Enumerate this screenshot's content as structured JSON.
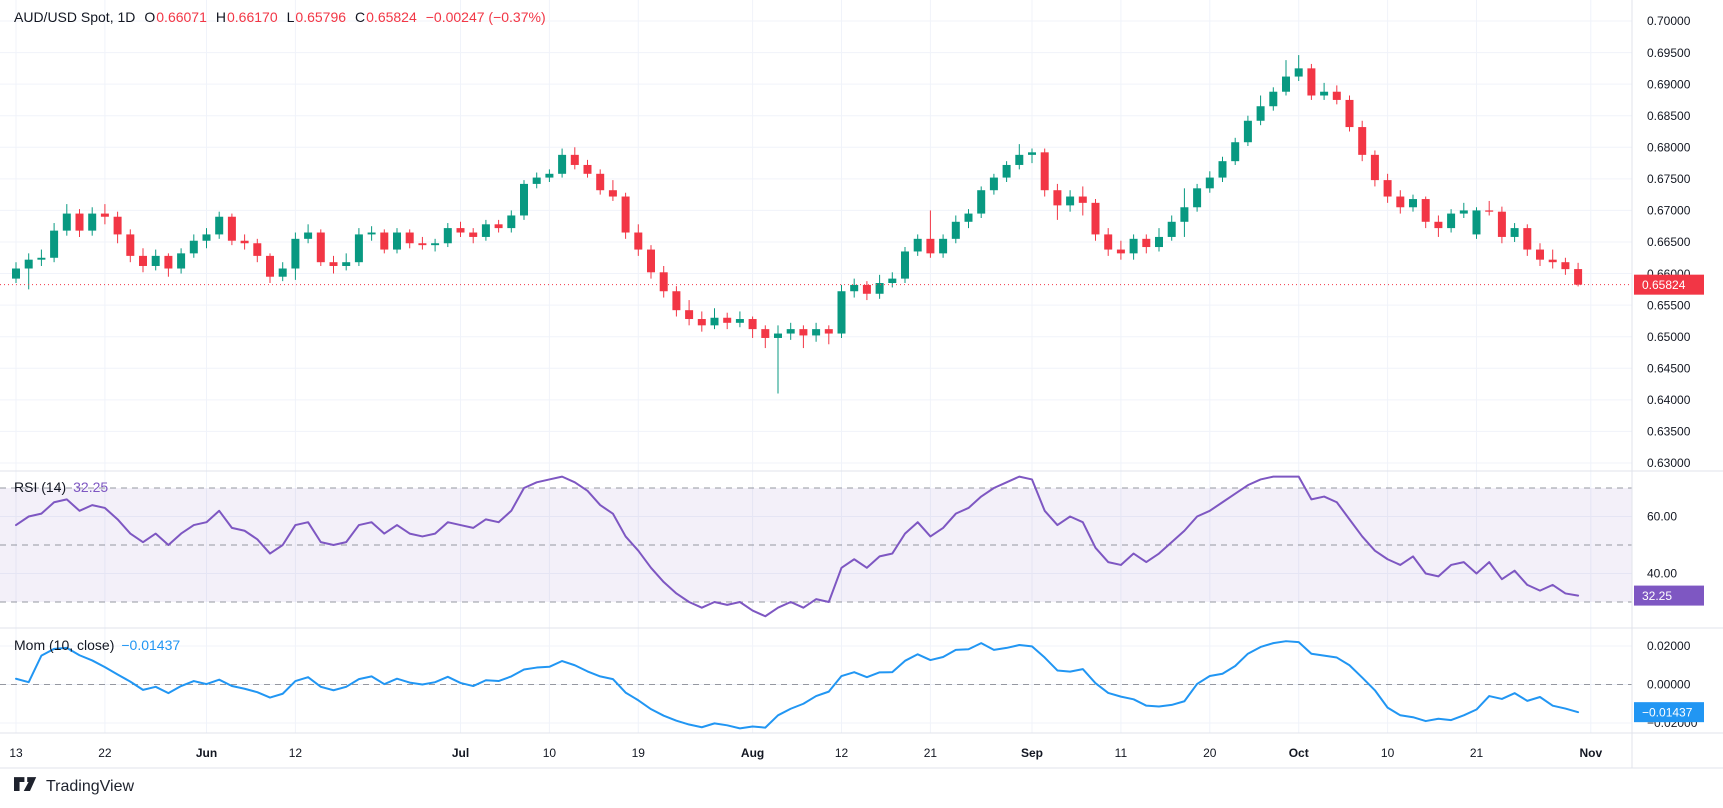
{
  "header": {
    "symbol_title": "AUD/USD Spot, 1D",
    "open": {
      "label": "O",
      "value": "0.66071"
    },
    "high": {
      "label": "H",
      "value": "0.66170"
    },
    "low": {
      "label": "L",
      "value": "0.65796"
    },
    "close": {
      "label": "C",
      "value": "0.65824"
    },
    "change": "−0.00247 (−0.37%)"
  },
  "rsi_legend": {
    "title": "RSI (14)",
    "value": "32.25"
  },
  "mom_legend": {
    "title": "Mom (10, close)",
    "value": "−0.01437"
  },
  "footer": {
    "logo_text": "TradingView"
  },
  "colors": {
    "up": "#089981",
    "down": "#F23645",
    "rsi_line": "#7E57C2",
    "rsi_band_fill": "rgba(126,87,194,0.09)",
    "mom_line": "#2196F3",
    "accent_red": "#F23645",
    "grid": "#F0F3FA",
    "separator": "#E0E3EB",
    "dashed": "#9598A1",
    "axis_text": "#131722"
  },
  "chart_data": {
    "type": "candlestick+indicators",
    "title": "AUD/USD Spot",
    "timeframe": "1D",
    "price_pane": {
      "ylim": [
        0.63,
        0.7
      ],
      "tick_step": 0.005,
      "ticks": [
        0.7,
        0.695,
        0.69,
        0.685,
        0.68,
        0.675,
        0.67,
        0.665,
        0.66,
        0.655,
        0.65,
        0.645,
        0.64,
        0.635,
        0.63
      ],
      "last_price": 0.65824,
      "candles": [
        [
          0.6592,
          0.6618,
          0.6585,
          0.6608
        ],
        [
          0.6608,
          0.6632,
          0.6575,
          0.6622
        ],
        [
          0.6622,
          0.6638,
          0.6612,
          0.6625
        ],
        [
          0.6625,
          0.668,
          0.6618,
          0.6668
        ],
        [
          0.6668,
          0.671,
          0.666,
          0.6695
        ],
        [
          0.6695,
          0.6702,
          0.6658,
          0.6668
        ],
        [
          0.6668,
          0.6705,
          0.666,
          0.6695
        ],
        [
          0.6695,
          0.671,
          0.6678,
          0.669
        ],
        [
          0.669,
          0.6698,
          0.6648,
          0.6662
        ],
        [
          0.6662,
          0.667,
          0.6618,
          0.6628
        ],
        [
          0.6628,
          0.664,
          0.6602,
          0.6612
        ],
        [
          0.6612,
          0.6638,
          0.6605,
          0.6628
        ],
        [
          0.6628,
          0.6632,
          0.6595,
          0.6608
        ],
        [
          0.6608,
          0.664,
          0.66,
          0.6632
        ],
        [
          0.6632,
          0.6662,
          0.6625,
          0.6652
        ],
        [
          0.6652,
          0.6672,
          0.664,
          0.6662
        ],
        [
          0.6662,
          0.6698,
          0.6655,
          0.669
        ],
        [
          0.669,
          0.6695,
          0.6645,
          0.6652
        ],
        [
          0.6652,
          0.6662,
          0.6638,
          0.6648
        ],
        [
          0.6648,
          0.6655,
          0.6618,
          0.6628
        ],
        [
          0.6628,
          0.6632,
          0.6585,
          0.6595
        ],
        [
          0.6595,
          0.6618,
          0.6588,
          0.6608
        ],
        [
          0.6608,
          0.6665,
          0.659,
          0.6655
        ],
        [
          0.6655,
          0.6678,
          0.6648,
          0.6665
        ],
        [
          0.6665,
          0.667,
          0.6612,
          0.6618
        ],
        [
          0.6618,
          0.6628,
          0.66,
          0.6612
        ],
        [
          0.6612,
          0.6632,
          0.6605,
          0.6618
        ],
        [
          0.6618,
          0.6672,
          0.6612,
          0.6662
        ],
        [
          0.6662,
          0.6675,
          0.6652,
          0.6665
        ],
        [
          0.6665,
          0.667,
          0.6632,
          0.6638
        ],
        [
          0.6638,
          0.6672,
          0.6632,
          0.6665
        ],
        [
          0.6665,
          0.667,
          0.664,
          0.6648
        ],
        [
          0.6648,
          0.6658,
          0.6638,
          0.6645
        ],
        [
          0.6645,
          0.6655,
          0.6635,
          0.6648
        ],
        [
          0.6648,
          0.668,
          0.6642,
          0.6672
        ],
        [
          0.6672,
          0.6682,
          0.6658,
          0.6665
        ],
        [
          0.6665,
          0.6672,
          0.6648,
          0.6658
        ],
        [
          0.6658,
          0.6685,
          0.6652,
          0.6678
        ],
        [
          0.6678,
          0.6685,
          0.6665,
          0.6672
        ],
        [
          0.6672,
          0.67,
          0.6665,
          0.6692
        ],
        [
          0.6692,
          0.6748,
          0.6685,
          0.6742
        ],
        [
          0.6742,
          0.676,
          0.6735,
          0.6752
        ],
        [
          0.6752,
          0.6765,
          0.6745,
          0.6758
        ],
        [
          0.6758,
          0.6798,
          0.6752,
          0.6788
        ],
        [
          0.6788,
          0.68,
          0.6765,
          0.6772
        ],
        [
          0.6772,
          0.678,
          0.6752,
          0.6758
        ],
        [
          0.6758,
          0.6765,
          0.6725,
          0.6732
        ],
        [
          0.6732,
          0.6748,
          0.6715,
          0.6722
        ],
        [
          0.6722,
          0.6728,
          0.6655,
          0.6665
        ],
        [
          0.6665,
          0.6678,
          0.6628,
          0.6638
        ],
        [
          0.6638,
          0.6645,
          0.6592,
          0.6602
        ],
        [
          0.6602,
          0.6612,
          0.6562,
          0.6572
        ],
        [
          0.6572,
          0.658,
          0.6532,
          0.6542
        ],
        [
          0.6542,
          0.6558,
          0.6518,
          0.6528
        ],
        [
          0.6528,
          0.654,
          0.6508,
          0.6518
        ],
        [
          0.6518,
          0.6545,
          0.6512,
          0.653
        ],
        [
          0.653,
          0.6538,
          0.6512,
          0.6522
        ],
        [
          0.6522,
          0.654,
          0.6515,
          0.6528
        ],
        [
          0.6528,
          0.6532,
          0.6498,
          0.6512
        ],
        [
          0.6512,
          0.6518,
          0.6482,
          0.6498
        ],
        [
          0.6498,
          0.6518,
          0.641,
          0.6505
        ],
        [
          0.6505,
          0.6522,
          0.6495,
          0.6512
        ],
        [
          0.6512,
          0.6518,
          0.6482,
          0.6502
        ],
        [
          0.6502,
          0.6522,
          0.6492,
          0.6512
        ],
        [
          0.6512,
          0.6518,
          0.6488,
          0.6505
        ],
        [
          0.6505,
          0.6582,
          0.6498,
          0.6572
        ],
        [
          0.6572,
          0.6592,
          0.6562,
          0.6582
        ],
        [
          0.6582,
          0.6588,
          0.6558,
          0.6568
        ],
        [
          0.6568,
          0.6598,
          0.656,
          0.6585
        ],
        [
          0.6585,
          0.6602,
          0.6578,
          0.6592
        ],
        [
          0.6592,
          0.6642,
          0.6585,
          0.6635
        ],
        [
          0.6635,
          0.6662,
          0.6628,
          0.6655
        ],
        [
          0.6655,
          0.67,
          0.6625,
          0.6632
        ],
        [
          0.6632,
          0.6662,
          0.6625,
          0.6655
        ],
        [
          0.6655,
          0.6692,
          0.6648,
          0.6682
        ],
        [
          0.6682,
          0.6702,
          0.6672,
          0.6695
        ],
        [
          0.6695,
          0.6738,
          0.6688,
          0.6732
        ],
        [
          0.6732,
          0.6758,
          0.6725,
          0.6752
        ],
        [
          0.6752,
          0.6778,
          0.6745,
          0.6772
        ],
        [
          0.6772,
          0.6805,
          0.6765,
          0.6788
        ],
        [
          0.6788,
          0.6798,
          0.6775,
          0.6792
        ],
        [
          0.6792,
          0.6798,
          0.6722,
          0.6732
        ],
        [
          0.6732,
          0.6742,
          0.6685,
          0.6708
        ],
        [
          0.6708,
          0.6732,
          0.6698,
          0.6722
        ],
        [
          0.6722,
          0.6738,
          0.6692,
          0.6712
        ],
        [
          0.6712,
          0.6718,
          0.6652,
          0.6662
        ],
        [
          0.6662,
          0.6672,
          0.6628,
          0.6638
        ],
        [
          0.6638,
          0.6652,
          0.6622,
          0.6632
        ],
        [
          0.6632,
          0.6662,
          0.6622,
          0.6655
        ],
        [
          0.6655,
          0.6662,
          0.6632,
          0.6642
        ],
        [
          0.6642,
          0.6672,
          0.6635,
          0.6658
        ],
        [
          0.6658,
          0.6692,
          0.6652,
          0.6682
        ],
        [
          0.6682,
          0.6735,
          0.6658,
          0.6705
        ],
        [
          0.6705,
          0.6742,
          0.6698,
          0.6735
        ],
        [
          0.6735,
          0.6762,
          0.6728,
          0.6752
        ],
        [
          0.6752,
          0.6785,
          0.6745,
          0.6778
        ],
        [
          0.6778,
          0.6815,
          0.6772,
          0.6808
        ],
        [
          0.6808,
          0.685,
          0.6802,
          0.6842
        ],
        [
          0.6842,
          0.6882,
          0.6835,
          0.6865
        ],
        [
          0.6865,
          0.6895,
          0.6858,
          0.6888
        ],
        [
          0.6888,
          0.6938,
          0.6882,
          0.6912
        ],
        [
          0.6912,
          0.6946,
          0.6905,
          0.6925
        ],
        [
          0.6925,
          0.6932,
          0.6875,
          0.6882
        ],
        [
          0.6882,
          0.6902,
          0.6875,
          0.6888
        ],
        [
          0.6888,
          0.6898,
          0.6868,
          0.6875
        ],
        [
          0.6875,
          0.6882,
          0.6825,
          0.6832
        ],
        [
          0.6832,
          0.6842,
          0.6778,
          0.6788
        ],
        [
          0.6788,
          0.6795,
          0.6738,
          0.6748
        ],
        [
          0.6748,
          0.6758,
          0.6712,
          0.6722
        ],
        [
          0.6722,
          0.6732,
          0.6695,
          0.6705
        ],
        [
          0.6705,
          0.6725,
          0.6698,
          0.6718
        ],
        [
          0.6718,
          0.6722,
          0.6672,
          0.6682
        ],
        [
          0.6682,
          0.6692,
          0.6658,
          0.6672
        ],
        [
          0.6672,
          0.6702,
          0.6665,
          0.6695
        ],
        [
          0.6695,
          0.6712,
          0.6688,
          0.67
        ],
        [
          0.6662,
          0.6705,
          0.6655,
          0.67
        ],
        [
          0.67,
          0.6715,
          0.6692,
          0.6698
        ],
        [
          0.6698,
          0.6706,
          0.6648,
          0.6658
        ],
        [
          0.6658,
          0.668,
          0.665,
          0.6672
        ],
        [
          0.6672,
          0.6678,
          0.6628,
          0.6638
        ],
        [
          0.6638,
          0.6648,
          0.6612,
          0.6622
        ],
        [
          0.6622,
          0.6638,
          0.6608,
          0.6618
        ],
        [
          0.6618,
          0.6625,
          0.6598,
          0.6607
        ],
        [
          0.66071,
          0.6617,
          0.65796,
          0.65824
        ]
      ]
    },
    "rsi_pane": {
      "label": "RSI (14)",
      "period": 14,
      "last": 32.25,
      "band_levels": [
        70,
        50,
        30
      ],
      "ticks": [
        60,
        40
      ],
      "values": [
        57,
        60,
        61,
        65,
        66,
        62,
        64,
        63,
        59,
        54,
        51,
        54,
        50,
        54,
        57,
        58,
        62,
        56,
        55,
        52,
        47,
        50,
        57,
        58,
        51,
        50,
        51,
        57,
        58,
        54,
        57,
        54,
        53,
        54,
        58,
        57,
        56,
        59,
        58,
        62,
        70,
        72,
        73,
        74,
        72,
        69,
        64,
        61,
        53,
        48,
        42,
        37,
        33,
        30,
        28,
        30,
        29,
        30,
        27,
        25,
        28,
        30,
        28,
        31,
        30,
        42,
        45,
        42,
        46,
        47,
        54,
        58,
        53,
        56,
        61,
        63,
        67,
        70,
        72,
        74,
        73,
        62,
        57,
        60,
        58,
        49,
        44,
        43,
        47,
        44,
        47,
        51,
        55,
        60,
        62,
        65,
        68,
        71,
        73,
        74,
        74,
        74,
        66,
        67,
        65,
        59,
        53,
        48,
        45,
        43,
        46,
        40,
        39,
        43,
        44,
        40,
        44,
        38,
        41,
        36,
        34,
        36,
        33,
        32.25
      ]
    },
    "mom_pane": {
      "label": "Mom (10, close)",
      "period": 10,
      "source": "close",
      "last": -0.01437,
      "ticks": [
        0.02,
        0,
        -0.02
      ],
      "values": [
        0.003,
        0.0012,
        0.015,
        0.0185,
        0.019,
        0.0152,
        0.0125,
        0.009,
        0.0052,
        0.0015,
        -0.0028,
        -0.0012,
        -0.0045,
        -0.0008,
        0.0018,
        0.0002,
        0.0025,
        -0.0008,
        -0.0022,
        -0.004,
        -0.0068,
        -0.0048,
        0.0018,
        0.0038,
        -0.0012,
        -0.003,
        -0.0012,
        0.0028,
        0.0042,
        0.0002,
        0.003,
        0.001,
        0.0,
        0.0012,
        0.004,
        0.0008,
        -0.0008,
        0.0022,
        0.0018,
        0.0042,
        0.0078,
        0.0088,
        0.0092,
        0.0122,
        0.01,
        0.0068,
        0.0042,
        0.0028,
        -0.0042,
        -0.0082,
        -0.0128,
        -0.0162,
        -0.0188,
        -0.0208,
        -0.0222,
        -0.0202,
        -0.0212,
        -0.0228,
        -0.0218,
        -0.0224,
        -0.016,
        -0.0126,
        -0.01,
        -0.006,
        -0.0037,
        0.0044,
        0.0064,
        0.0038,
        0.0063,
        0.0064,
        0.0123,
        0.0157,
        0.0127,
        0.0143,
        0.018,
        0.0183,
        0.0215,
        0.018,
        0.019,
        0.0205,
        0.0198,
        0.014,
        0.0073,
        0.0067,
        0.008,
        0.0007,
        -0.0044,
        -0.0063,
        -0.0077,
        -0.011,
        -0.0114,
        -0.0106,
        -0.0087,
        0.0003,
        0.0044,
        0.0056,
        0.0096,
        0.016,
        0.0195,
        0.0215,
        0.0225,
        0.022,
        0.016,
        0.015,
        0.014,
        0.01,
        0.0036,
        -0.003,
        -0.012,
        -0.016,
        -0.017,
        -0.019,
        -0.0178,
        -0.0185,
        -0.016,
        -0.013,
        -0.006,
        -0.0075,
        -0.0045,
        -0.0085,
        -0.0065,
        -0.011,
        -0.0125,
        -0.01437
      ]
    },
    "time_axis": {
      "ticks": [
        {
          "label": "13",
          "bar": 0,
          "bold": false
        },
        {
          "label": "22",
          "bar": 7,
          "bold": false
        },
        {
          "label": "Jun",
          "bar": 15,
          "bold": true
        },
        {
          "label": "12",
          "bar": 22,
          "bold": false
        },
        {
          "label": "Jul",
          "bar": 35,
          "bold": true
        },
        {
          "label": "10",
          "bar": 42,
          "bold": false
        },
        {
          "label": "19",
          "bar": 49,
          "bold": false
        },
        {
          "label": "Aug",
          "bar": 58,
          "bold": true
        },
        {
          "label": "12",
          "bar": 65,
          "bold": false
        },
        {
          "label": "21",
          "bar": 72,
          "bold": false
        },
        {
          "label": "Sep",
          "bar": 80,
          "bold": true
        },
        {
          "label": "11",
          "bar": 87,
          "bold": false
        },
        {
          "label": "20",
          "bar": 94,
          "bold": false
        },
        {
          "label": "Oct",
          "bar": 101,
          "bold": true
        },
        {
          "label": "10",
          "bar": 108,
          "bold": false
        },
        {
          "label": "21",
          "bar": 115,
          "bold": false
        },
        {
          "label": "Nov",
          "bar": 124,
          "bold": true
        }
      ]
    },
    "badges": {
      "price": "0.65824",
      "rsi": "32.25",
      "mom": "−0.01437"
    }
  }
}
